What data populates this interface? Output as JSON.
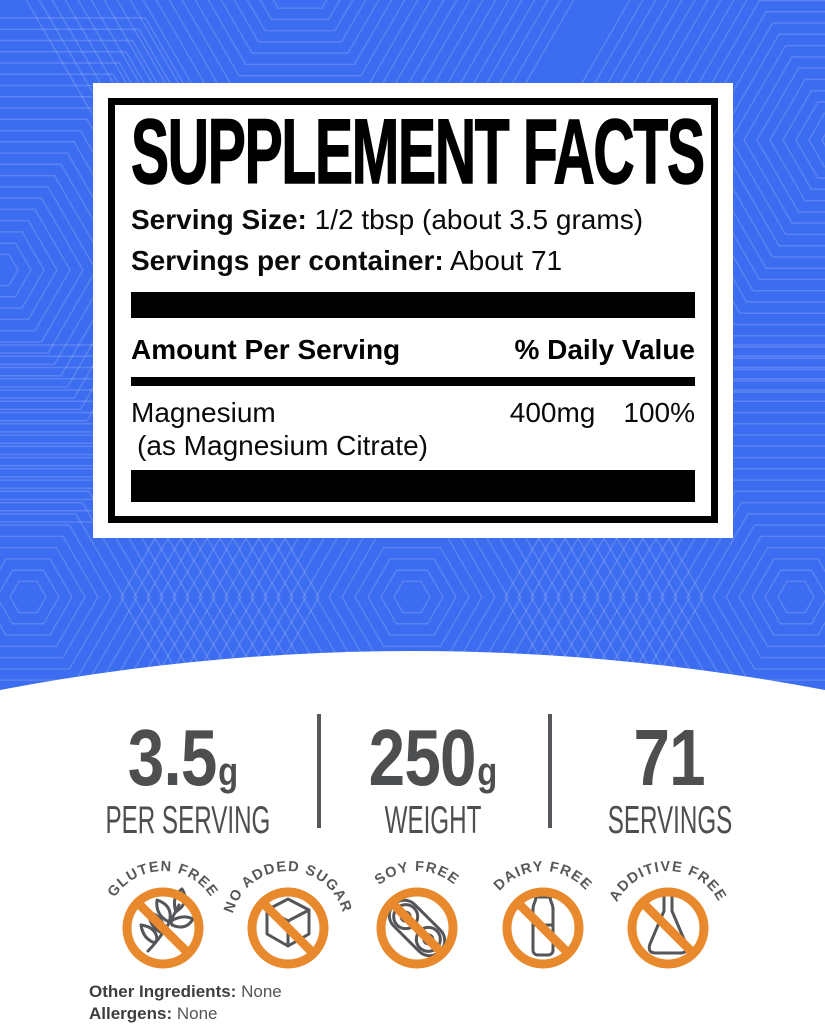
{
  "colors": {
    "background_blue": "#3C6CEF",
    "pattern_line": "rgba(255,255,255,0.16)",
    "accent_orange": "#E8892D",
    "icon_gray": "#55565A",
    "stat_gray": "#4D4E50",
    "label_black": "#000000"
  },
  "supplement_facts": {
    "title": "SUPPLEMENT FACTS",
    "serving_size_label": "Serving Size:",
    "serving_size_value": "1/2 tbsp (about 3.5 grams)",
    "servings_label": "Servings per container:",
    "servings_value": "About 71",
    "amount_header": "Amount Per Serving",
    "dv_header": "% Daily Value",
    "rows": [
      {
        "name": "Magnesium",
        "name_detail": "(as Magnesium Citrate)",
        "amount": "400mg",
        "daily_value": "100%"
      }
    ]
  },
  "stats": [
    {
      "value": "3.5",
      "unit": "g",
      "label": "PER SERVING"
    },
    {
      "value": "250",
      "unit": "g",
      "label": "WEIGHT"
    },
    {
      "value": "71",
      "unit": "",
      "label": "SERVINGS"
    }
  ],
  "badges": [
    {
      "label": "GLUTEN FREE",
      "icon": "wheat-icon"
    },
    {
      "label": "NO ADDED SUGAR",
      "icon": "sugar-cube-icon"
    },
    {
      "label": "SOY FREE",
      "icon": "soybean-icon"
    },
    {
      "label": "DAIRY FREE",
      "icon": "milk-bottle-icon"
    },
    {
      "label": "ADDITIVE FREE",
      "icon": "flask-icon"
    }
  ],
  "footnotes": [
    {
      "label": "Other Ingredients:",
      "value": "None"
    },
    {
      "label": "Allergens:",
      "value": "None"
    }
  ]
}
